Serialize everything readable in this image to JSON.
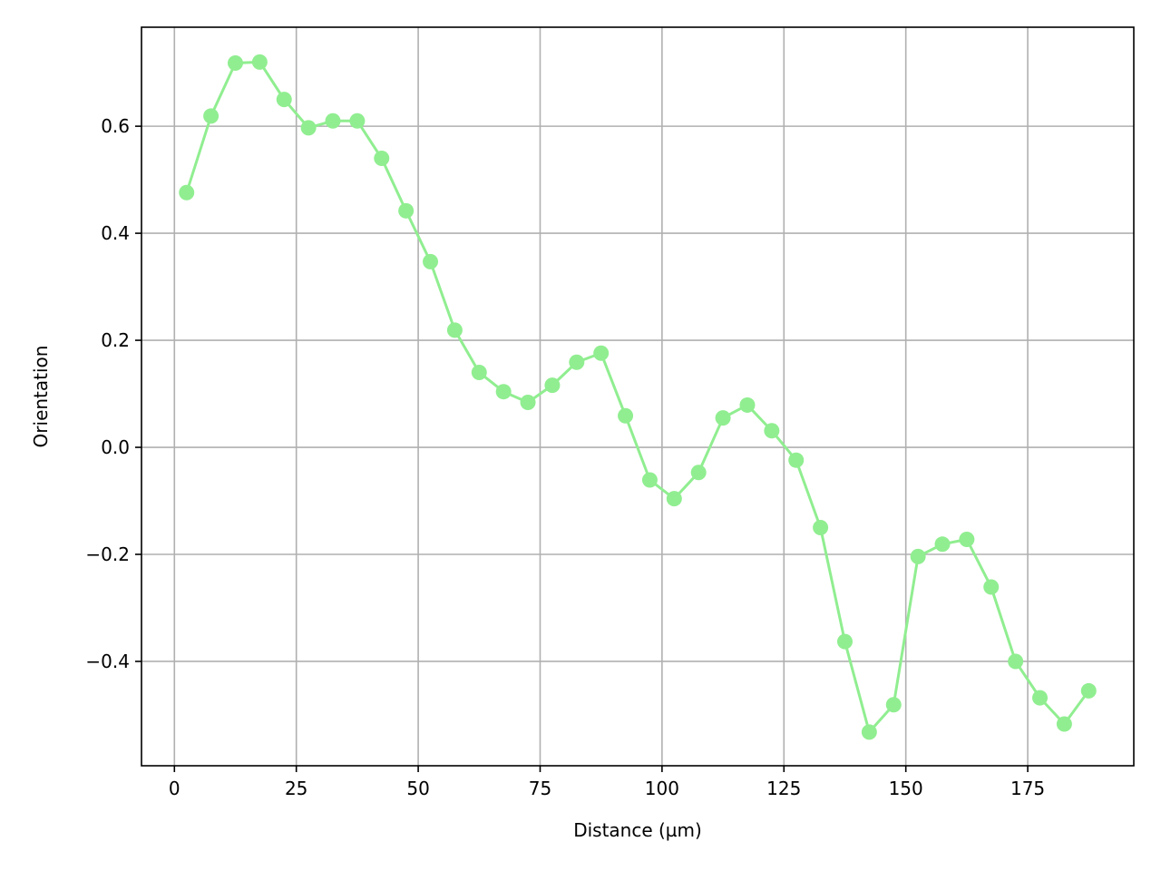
{
  "chart_data": {
    "type": "line",
    "title": "",
    "xlabel": "Distance (µm)",
    "ylabel": "Orientation",
    "xlim": [
      -6.75,
      196.75
    ],
    "ylim": [
      -0.595,
      0.785
    ],
    "xticks": [
      0,
      25,
      50,
      75,
      100,
      125,
      150,
      175
    ],
    "yticks": [
      -0.4,
      -0.2,
      0.0,
      0.2,
      0.4,
      0.6
    ],
    "ytick_labels": [
      "−0.4",
      "−0.2",
      "0.0",
      "0.2",
      "0.4",
      "0.6"
    ],
    "xtick_labels": [
      "0",
      "25",
      "50",
      "75",
      "100",
      "125",
      "150",
      "175"
    ],
    "grid": true,
    "legend": "none",
    "series": [
      {
        "color": "#90ee90",
        "marker": "circle",
        "x": [
          2.5,
          7.5,
          12.5,
          17.5,
          22.5,
          27.5,
          32.5,
          37.5,
          42.5,
          47.5,
          52.5,
          57.5,
          62.5,
          67.5,
          72.5,
          77.5,
          82.5,
          87.5,
          92.5,
          97.5,
          102.5,
          107.5,
          112.5,
          117.5,
          122.5,
          127.5,
          132.5,
          137.5,
          142.5,
          147.5,
          152.5,
          157.5,
          162.5,
          167.5,
          172.5,
          177.5,
          182.5,
          187.5
        ],
        "y": [
          0.476,
          0.619,
          0.718,
          0.72,
          0.65,
          0.597,
          0.61,
          0.61,
          0.54,
          0.442,
          0.347,
          0.219,
          0.14,
          0.104,
          0.084,
          0.116,
          0.159,
          0.176,
          0.059,
          -0.061,
          -0.096,
          -0.047,
          0.055,
          0.079,
          0.031,
          -0.024,
          -0.15,
          -0.363,
          -0.532,
          -0.481,
          -0.204,
          -0.181,
          -0.172,
          -0.261,
          -0.4,
          -0.468,
          -0.517,
          -0.455
        ]
      }
    ]
  }
}
